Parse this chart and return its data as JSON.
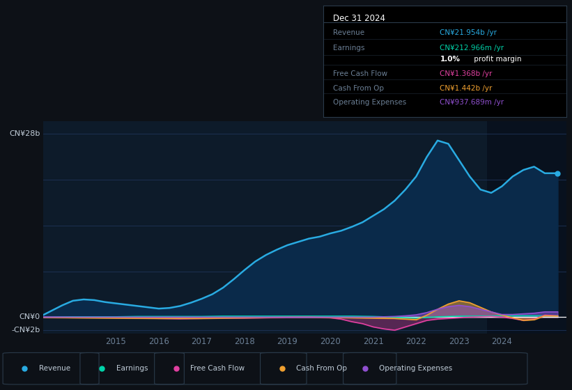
{
  "bg_color": "#0d1117",
  "plot_bg_color": "#0d1b2a",
  "grid_color": "#1e3358",
  "text_color": "#6b7f95",
  "zero_line_color": "#ffffff",
  "revenue_color": "#29abe2",
  "revenue_fill": "#0a2a4a",
  "earnings_color": "#00d4aa",
  "fcf_color": "#e040a0",
  "cashop_color": "#f0a030",
  "opex_color": "#9050d0",
  "highlight_bg": "#08111e",
  "ylim": [
    -2.5,
    30.0
  ],
  "xlim": [
    2013.3,
    2025.5
  ],
  "xtick_positions": [
    2015,
    2016,
    2017,
    2018,
    2019,
    2020,
    2021,
    2022,
    2023,
    2024
  ],
  "highlight_x_start": 2023.65,
  "highlight_x_end": 2025.5,
  "tooltip_title": "Dec 31 2024",
  "legend_items": [
    "Revenue",
    "Earnings",
    "Free Cash Flow",
    "Cash From Op",
    "Operating Expenses"
  ],
  "legend_colors": [
    "#29abe2",
    "#00d4aa",
    "#e040a0",
    "#f0a030",
    "#9050d0"
  ],
  "revenue": {
    "x": [
      2013.3,
      2013.75,
      2014.0,
      2014.25,
      2014.5,
      2014.75,
      2015.0,
      2015.25,
      2015.5,
      2015.75,
      2016.0,
      2016.25,
      2016.5,
      2016.75,
      2017.0,
      2017.25,
      2017.5,
      2017.75,
      2018.0,
      2018.25,
      2018.5,
      2018.75,
      2019.0,
      2019.25,
      2019.5,
      2019.75,
      2020.0,
      2020.25,
      2020.5,
      2020.75,
      2021.0,
      2021.25,
      2021.5,
      2021.75,
      2022.0,
      2022.25,
      2022.5,
      2022.75,
      2023.0,
      2023.25,
      2023.5,
      2023.75,
      2024.0,
      2024.25,
      2024.5,
      2024.75,
      2025.0,
      2025.3
    ],
    "y": [
      0.3,
      1.8,
      2.5,
      2.7,
      2.6,
      2.3,
      2.1,
      1.9,
      1.7,
      1.5,
      1.3,
      1.4,
      1.7,
      2.2,
      2.8,
      3.5,
      4.5,
      5.8,
      7.2,
      8.5,
      9.5,
      10.3,
      11.0,
      11.5,
      12.0,
      12.3,
      12.8,
      13.2,
      13.8,
      14.5,
      15.5,
      16.5,
      17.8,
      19.5,
      21.5,
      24.5,
      27.0,
      26.5,
      24.0,
      21.5,
      19.5,
      19.0,
      20.0,
      21.5,
      22.5,
      23.0,
      22.0,
      22.0
    ]
  },
  "earnings": {
    "x": [
      2013.3,
      2014.0,
      2014.5,
      2015.0,
      2015.5,
      2016.0,
      2016.5,
      2017.0,
      2017.5,
      2018.0,
      2018.5,
      2019.0,
      2019.5,
      2020.0,
      2020.5,
      2021.0,
      2021.25,
      2021.5,
      2021.75,
      2022.0,
      2022.25,
      2022.5,
      2022.75,
      2023.0,
      2023.5,
      2024.0,
      2024.5,
      2025.0,
      2025.3
    ],
    "y": [
      0.0,
      0.05,
      0.05,
      0.05,
      0.1,
      0.1,
      0.1,
      0.1,
      0.15,
      0.15,
      0.15,
      0.15,
      0.15,
      0.15,
      0.15,
      0.1,
      0.05,
      -0.05,
      -0.1,
      -0.15,
      -0.05,
      0.05,
      0.1,
      0.15,
      0.15,
      0.2,
      0.2,
      0.2,
      0.2
    ]
  },
  "fcf": {
    "x": [
      2013.3,
      2014.0,
      2015.0,
      2015.5,
      2016.0,
      2016.5,
      2017.0,
      2017.5,
      2018.0,
      2018.5,
      2019.0,
      2019.5,
      2020.0,
      2020.25,
      2020.5,
      2020.75,
      2021.0,
      2021.25,
      2021.5,
      2021.75,
      2022.0,
      2022.25,
      2022.5,
      2022.75,
      2023.0,
      2023.25,
      2023.5,
      2023.75,
      2024.0,
      2024.25,
      2024.5,
      2024.75,
      2025.0,
      2025.3
    ],
    "y": [
      0.0,
      -0.05,
      -0.1,
      -0.15,
      -0.2,
      -0.25,
      -0.2,
      -0.15,
      -0.15,
      -0.1,
      -0.05,
      0.0,
      -0.1,
      -0.3,
      -0.7,
      -1.0,
      -1.5,
      -1.8,
      -2.0,
      -1.5,
      -1.0,
      -0.5,
      -0.3,
      -0.2,
      -0.1,
      0.0,
      0.05,
      0.1,
      0.0,
      -0.2,
      -0.5,
      -0.3,
      0.3,
      0.2
    ]
  },
  "cashop": {
    "x": [
      2013.3,
      2014.0,
      2015.0,
      2016.0,
      2017.0,
      2017.5,
      2018.0,
      2018.5,
      2019.0,
      2019.5,
      2020.0,
      2020.5,
      2021.0,
      2021.5,
      2021.75,
      2022.0,
      2022.25,
      2022.5,
      2022.75,
      2023.0,
      2023.25,
      2023.5,
      2023.75,
      2024.0,
      2024.25,
      2024.5,
      2024.75,
      2025.0,
      2025.3
    ],
    "y": [
      -0.05,
      -0.1,
      -0.15,
      -0.2,
      -0.2,
      -0.15,
      -0.1,
      -0.05,
      0.0,
      0.0,
      -0.05,
      -0.1,
      -0.15,
      -0.2,
      -0.3,
      -0.4,
      0.3,
      1.2,
      2.0,
      2.5,
      2.2,
      1.5,
      0.8,
      0.3,
      -0.1,
      -0.5,
      -0.4,
      0.2,
      0.15
    ]
  },
  "opex": {
    "x": [
      2013.3,
      2014.0,
      2015.0,
      2016.0,
      2017.0,
      2018.0,
      2019.0,
      2020.0,
      2021.0,
      2021.5,
      2021.75,
      2022.0,
      2022.25,
      2022.5,
      2022.75,
      2023.0,
      2023.25,
      2023.5,
      2023.75,
      2024.0,
      2024.25,
      2024.5,
      2024.75,
      2025.0,
      2025.3
    ],
    "y": [
      0.0,
      0.0,
      0.0,
      0.0,
      0.0,
      0.0,
      0.0,
      0.0,
      0.0,
      0.1,
      0.2,
      0.35,
      0.7,
      1.2,
      1.6,
      1.8,
      1.6,
      1.2,
      0.8,
      0.4,
      0.4,
      0.5,
      0.6,
      0.8,
      0.8
    ]
  }
}
